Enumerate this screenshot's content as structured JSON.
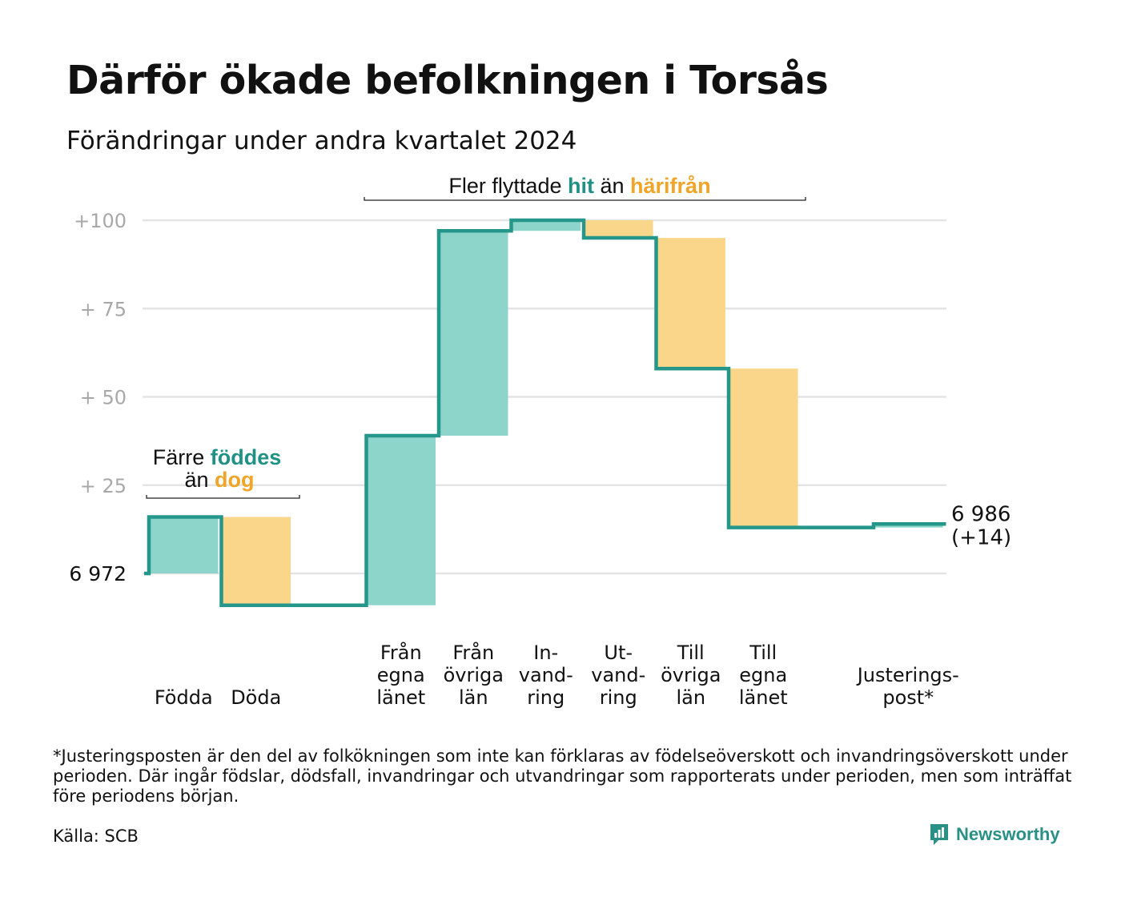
{
  "title": "Därför ökade befolkningen i Torsås",
  "subtitle": "Förändringar under andra kvartalet 2024",
  "colors": {
    "inflow": "#8dd5cb",
    "outflow": "#fad68b",
    "line": "#24968a",
    "accent_inflow": "#1f9185",
    "accent_outflow": "#f0a428",
    "grid": "#e3e3e3",
    "tick": "#a8a8a8"
  },
  "chart_data": {
    "type": "waterfall",
    "start_value": 6972,
    "start_label": "6  972",
    "end_label_value": "6 986",
    "end_label_change": "(+14)",
    "yaxis": {
      "ticks": [
        25,
        50,
        75,
        100
      ],
      "tick_labels": [
        "+  25",
        "+  50",
        "+  75",
        "+100"
      ],
      "range": [
        -12,
        101
      ],
      "grid": true
    },
    "steps": [
      {
        "key": "fodda",
        "label_lines": [
          "Födda"
        ],
        "value": 16,
        "kind": "in"
      },
      {
        "key": "doda",
        "label_lines": [
          "Döda"
        ],
        "value": -25,
        "kind": "out"
      },
      {
        "key": "gap",
        "label_lines": [],
        "value": 0,
        "kind": "none"
      },
      {
        "key": "fran_egna",
        "label_lines": [
          "Från",
          "egna",
          "länet"
        ],
        "value": 48,
        "kind": "in"
      },
      {
        "key": "fran_ovriga",
        "label_lines": [
          "Från",
          "övriga",
          "län"
        ],
        "value": 58,
        "kind": "in"
      },
      {
        "key": "invandring",
        "label_lines": [
          "In-",
          "vand-",
          "ring"
        ],
        "value": 3,
        "kind": "in"
      },
      {
        "key": "utvandring",
        "label_lines": [
          "Ut-",
          "vand-",
          "ring"
        ],
        "value": -5,
        "kind": "out"
      },
      {
        "key": "till_ovriga",
        "label_lines": [
          "Till",
          "övriga",
          "län"
        ],
        "value": -37,
        "kind": "out"
      },
      {
        "key": "till_egna",
        "label_lines": [
          "Till",
          "egna",
          "länet"
        ],
        "value": -45,
        "kind": "out"
      },
      {
        "key": "gap2",
        "label_lines": [],
        "value": 0,
        "kind": "none"
      },
      {
        "key": "justering",
        "label_lines": [
          "Justerings-",
          "post*"
        ],
        "value": 1,
        "kind": "in"
      }
    ],
    "annotations": [
      {
        "key": "migration",
        "parts": [
          {
            "text": "Fler flyttade ",
            "style": "plain"
          },
          {
            "text": "hit",
            "style": "in"
          },
          {
            "text": " än ",
            "style": "plain"
          },
          {
            "text": "härifrån",
            "style": "out"
          }
        ]
      },
      {
        "key": "natural_line1",
        "parts": [
          {
            "text": "Färre ",
            "style": "plain"
          },
          {
            "text": "föddes",
            "style": "in"
          }
        ]
      },
      {
        "key": "natural_line2",
        "parts": [
          {
            "text": "än ",
            "style": "plain"
          },
          {
            "text": "dog",
            "style": "out"
          }
        ]
      }
    ]
  },
  "footnote": "*Justeringsposten är den del av folkökningen som inte kan förklaras av födelseöverskott och invandringsöverskott under perioden. Där ingår födslar, dödsfall, invandringar och utvandringar som rapporterats under perioden, men som inträffat före periodens början.",
  "source": "Källa: SCB",
  "brand": {
    "name": "Newsworthy",
    "icon": "newsworthy-logo-icon"
  }
}
